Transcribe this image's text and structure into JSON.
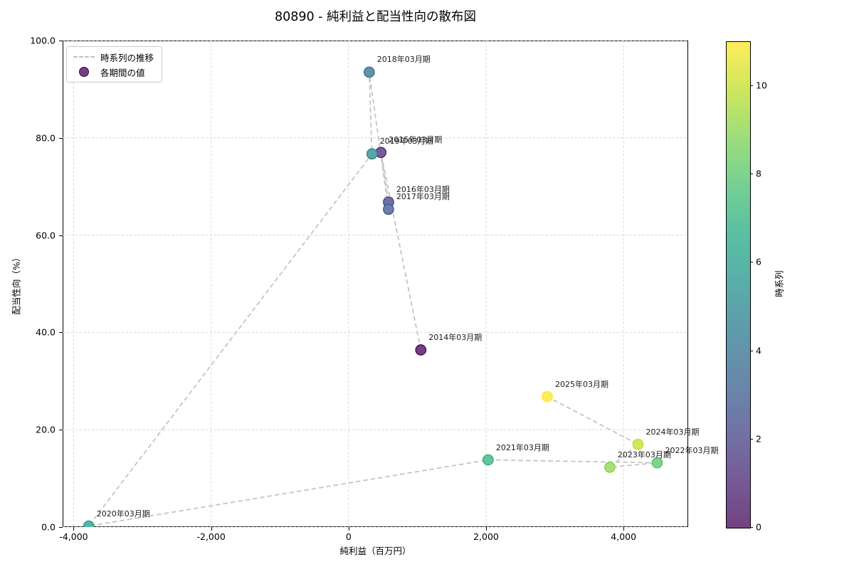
{
  "legend": {
    "line_label": "時系列の推移",
    "marker_label": "各期間の値",
    "marker_fill": "#734180",
    "marker_edge": "#440154",
    "line_color": "#c3c3c3"
  },
  "colorbar": {
    "label": "時系列",
    "vmin": 0,
    "vmax": 11,
    "ticks": [
      {
        "label": "0",
        "value": 0
      },
      {
        "label": "2",
        "value": 2
      },
      {
        "label": "4",
        "value": 4
      },
      {
        "label": "6",
        "value": 6
      },
      {
        "label": "8",
        "value": 8
      },
      {
        "label": "10",
        "value": 10
      }
    ],
    "gradient_stops_bottom_to_top": [
      "#734180",
      "#765b97",
      "#7173a5",
      "#6888aa",
      "#5f9aab",
      "#59ada9",
      "#59bea3",
      "#73cf94",
      "#9bdd7d",
      "#cee65c",
      "#feed5b"
    ]
  },
  "style": {
    "grid_color": "#d8d8d8",
    "trend_line_color": "#c5c5c5",
    "point_radius": 7.2
  },
  "chart_data": {
    "type": "scatter",
    "title": "80890 - 純利益と配当性向の散布図",
    "xlabel": "純利益（百万円）",
    "ylabel": "配当性向（%）",
    "xlim": [
      -4160,
      4940
    ],
    "ylim": [
      0,
      100
    ],
    "grid": true,
    "legend_position": "upper left",
    "colormap": "viridis",
    "x_ticks": [
      {
        "label": "-4,000",
        "value": -4000
      },
      {
        "label": "-2,000",
        "value": -2000
      },
      {
        "label": "0",
        "value": 0
      },
      {
        "label": "2,000",
        "value": 2000
      },
      {
        "label": "4,000",
        "value": 4000
      }
    ],
    "y_ticks": [
      {
        "label": "0.0",
        "value": 0
      },
      {
        "label": "20.0",
        "value": 20
      },
      {
        "label": "40.0",
        "value": 40
      },
      {
        "label": "60.0",
        "value": 60
      },
      {
        "label": "80.0",
        "value": 80
      },
      {
        "label": "100.0",
        "value": 100
      }
    ],
    "series": [
      {
        "name": "各期間の値",
        "connected_by_dashed_line_in_time_order": true,
        "points": [
          {
            "label": "2014年03月期",
            "x": 1050,
            "y": 36.4,
            "t": 0,
            "fill": "#734180",
            "edge": "#440154"
          },
          {
            "label": "2015年03月期",
            "x": 470,
            "y": 77.0,
            "t": 1,
            "fill": "#765c98",
            "edge": "#482576"
          },
          {
            "label": "2016年03月期",
            "x": 580,
            "y": 66.8,
            "t": 2,
            "fill": "#716ea3",
            "edge": "#423e84"
          },
          {
            "label": "2017年03月期",
            "x": 580,
            "y": 65.3,
            "t": 3,
            "fill": "#6a81a8",
            "edge": "#38578b"
          },
          {
            "label": "2018年03月期",
            "x": 300,
            "y": 93.5,
            "t": 4,
            "fill": "#6293aa",
            "edge": "#2e6f8e"
          },
          {
            "label": "2019年03月期",
            "x": 340,
            "y": 76.7,
            "t": 5,
            "fill": "#5ba4aa",
            "edge": "#25858d"
          },
          {
            "label": "2020年03月期",
            "x": -3780,
            "y": 0.2,
            "t": 6,
            "fill": "#59b4a7",
            "edge": "#219b89"
          },
          {
            "label": "2021年03月期",
            "x": 2030,
            "y": 13.8,
            "t": 7,
            "fill": "#63c49e",
            "edge": "#2fb07d"
          },
          {
            "label": "2022年03月期",
            "x": 4490,
            "y": 13.2,
            "t": 8,
            "fill": "#7ed38e",
            "edge": "#53c468"
          },
          {
            "label": "2023年03月期",
            "x": 3800,
            "y": 12.3,
            "t": 9,
            "fill": "#a4df77",
            "edge": "#86d449"
          },
          {
            "label": "2024年03月期",
            "x": 4210,
            "y": 17.0,
            "t": 10,
            "fill": "#d2e75c",
            "edge": "#c3df26"
          },
          {
            "label": "2025年03月期",
            "x": 2890,
            "y": 26.8,
            "t": 11,
            "fill": "#feed5b",
            "edge": "#fde725"
          }
        ]
      }
    ]
  }
}
